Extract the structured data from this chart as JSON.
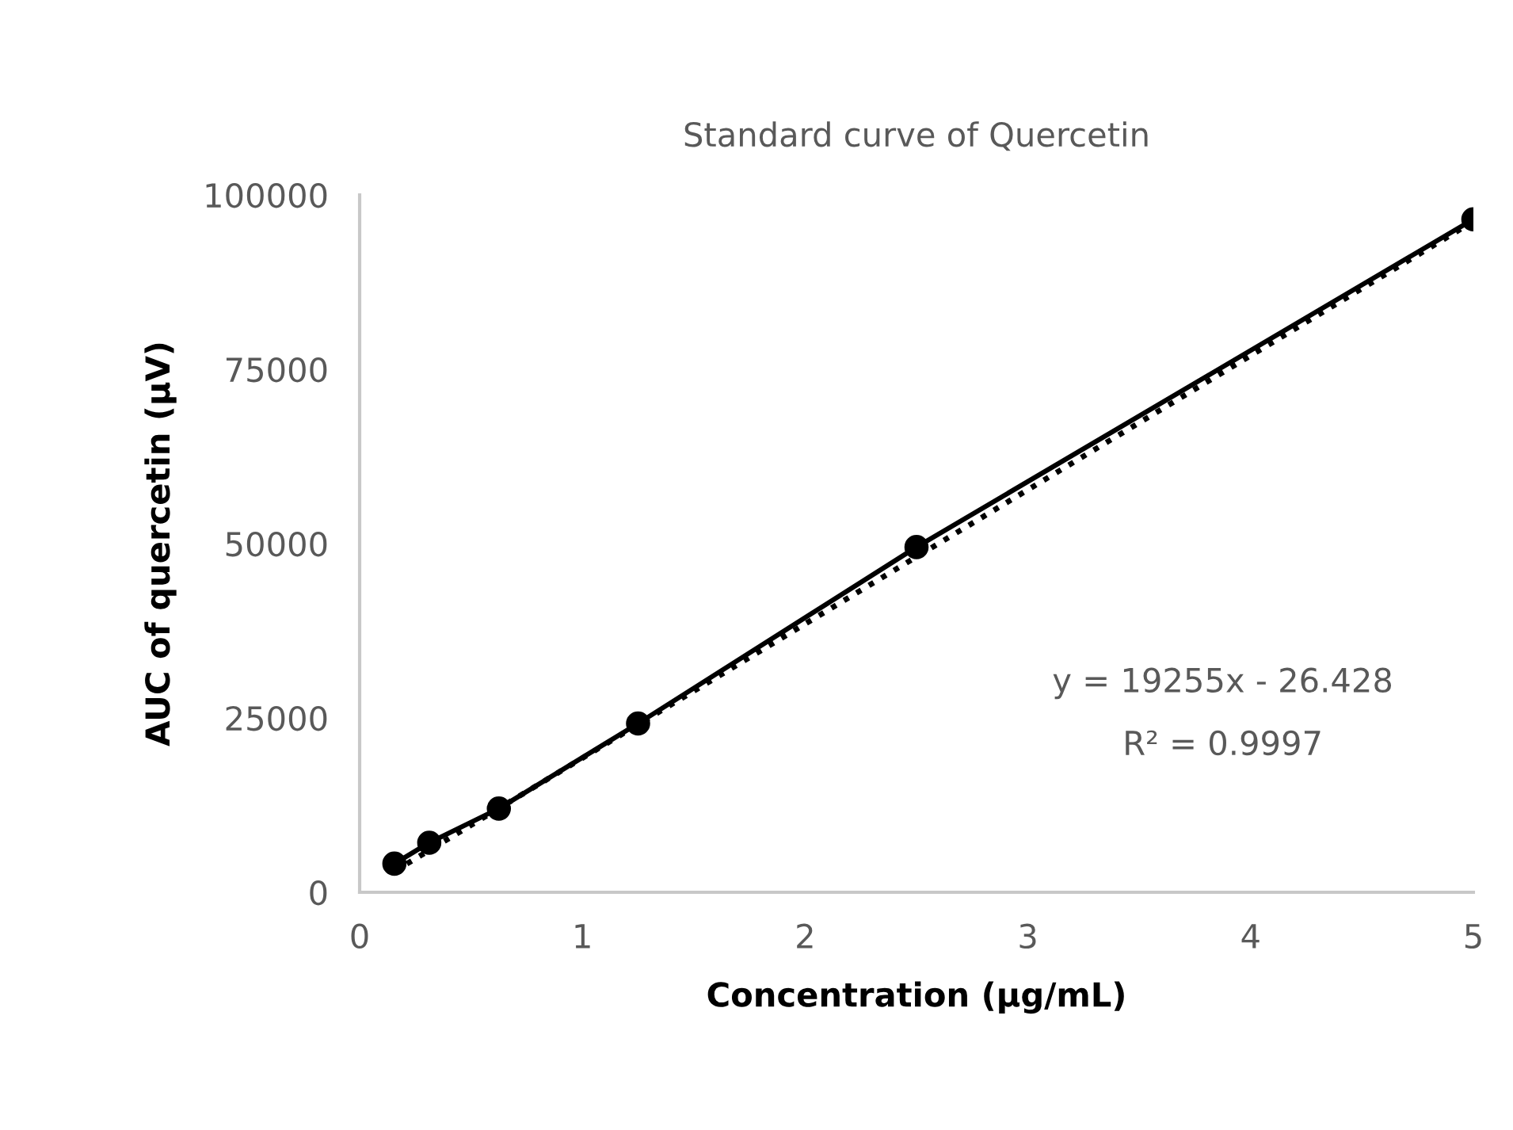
{
  "chart_data": {
    "type": "line",
    "title": "Standard curve of Quercetin",
    "xlabel": "Concentration (µg/mL)",
    "ylabel": "AUC of quercetin (µV)",
    "series": [
      {
        "color": "#000000",
        "marker": "circle",
        "line_style": "solid",
        "x": [
          0.156,
          0.3125,
          0.625,
          1.25,
          2.5,
          5
        ],
        "values": [
          4100,
          7100,
          12000,
          24200,
          49500,
          96500
        ]
      },
      {
        "color": "#000000",
        "marker": "none",
        "line_style": "dotted",
        "x": [
          0.156,
          5
        ],
        "values": [
          3000,
          96200
        ]
      }
    ],
    "annotations": [
      "y = 19255x - 26.428",
      "R² = 0.9997"
    ],
    "xlim": [
      0,
      5
    ],
    "xticks": [
      0,
      1,
      2,
      3,
      4,
      5
    ],
    "ylim": [
      0,
      100000
    ],
    "yticks": [
      0,
      25000,
      50000,
      75000,
      100000
    ],
    "grid": false,
    "legend": false
  }
}
